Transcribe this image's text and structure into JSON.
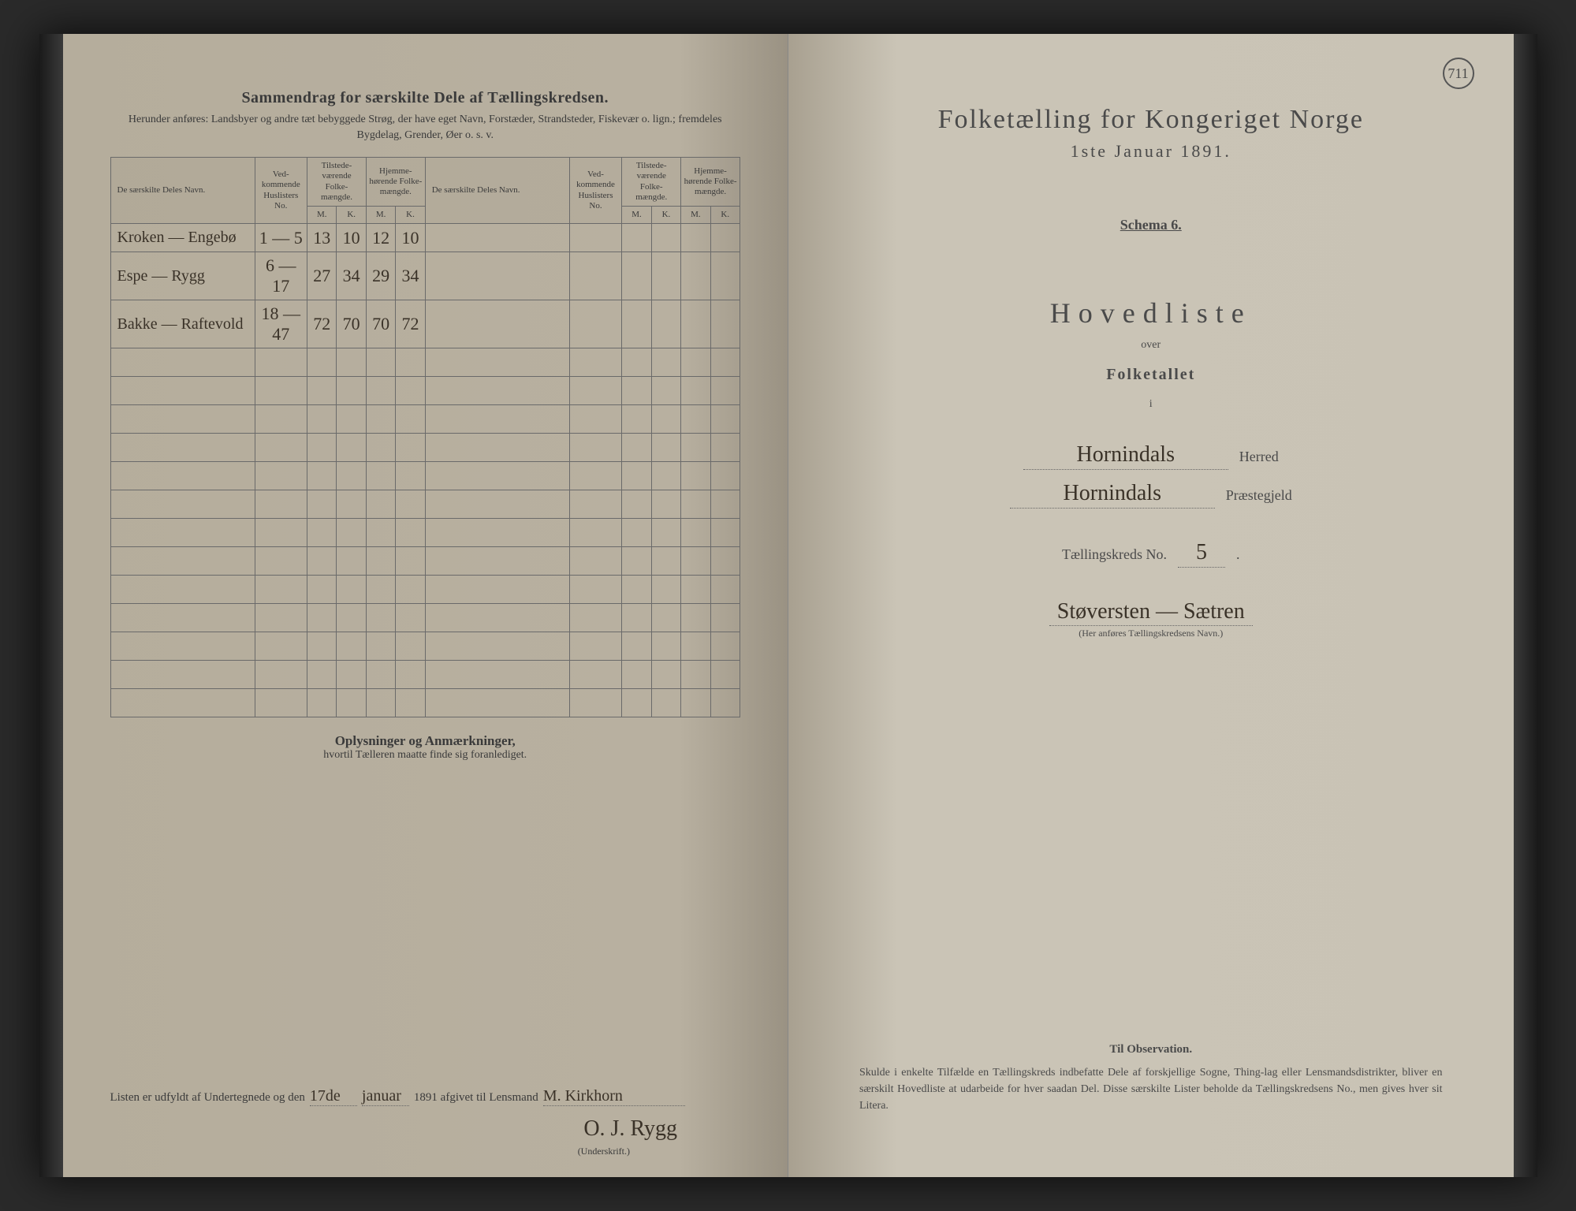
{
  "page_number": "711",
  "left": {
    "title": "Sammendrag for særskilte Dele af Tællingskredsen.",
    "subtitle": "Herunder anføres: Landsbyer og andre tæt bebyggede Strøg, der have eget Navn, Forstæder, Strandsteder, Fiskevær o. lign.; fremdeles Bygdelag, Grender, Øer o. s. v.",
    "headers": {
      "name": "De særskilte Deles Navn.",
      "huslister": "Ved-\nkommende\nHuslisters\nNo.",
      "tilstede": "Tilstede-\nværende\nFolke-\nmængde.",
      "hjemme": "Hjemme-\nhørende\nFolke-\nmængde.",
      "m": "M.",
      "k": "K."
    },
    "rows": [
      {
        "name": "Kroken — Engebø",
        "no": "1 — 5",
        "tm": "13",
        "tk": "10",
        "hm": "12",
        "hk": "10"
      },
      {
        "name": "Espe — Rygg",
        "no": "6 — 17",
        "tm": "27",
        "tk": "34",
        "hm": "29",
        "hk": "34"
      },
      {
        "name": "Bakke — Raftevold",
        "no": "18 — 47",
        "tm": "72",
        "tk": "70",
        "hm": "70",
        "hk": "72"
      }
    ],
    "notes_title": "Oplysninger og Anmærkninger,",
    "notes_sub": "hvortil Tælleren maatte finde sig foranlediget.",
    "sig_prefix": "Listen er udfyldt af Undertegnede og den",
    "sig_day": "17de",
    "sig_month": "januar",
    "sig_year": "1891 afgivet til Lensmand",
    "sig_lensmand": "M. Kirkhorn",
    "sig_name": "O. J. Rygg",
    "sig_caption": "(Underskrift.)"
  },
  "right": {
    "main_title": "Folketælling for Kongeriget Norge",
    "main_date": "1ste Januar 1891.",
    "schema": "Schema 6.",
    "hovedliste": "Hovedliste",
    "over": "over",
    "folketallet": "Folketallet",
    "i": "i",
    "herred_val": "Hornindals",
    "herred_lbl": "Herred",
    "praest_val": "Hornindals",
    "praest_lbl": "Præstegjeld",
    "kreds_lbl": "Tællingskreds No.",
    "kreds_no": "5",
    "kreds_name": "Støversten — Sætren",
    "kreds_caption": "(Her anføres Tællingskredsens Navn.)",
    "obs_title": "Til Observation.",
    "obs_text": "Skulde i enkelte Tilfælde en Tællingskreds indbefatte Dele af forskjellige Sogne, Thing-lag eller Lensmandsdistrikter, bliver en særskilt Hovedliste at udarbeide for hver saadan Del. Disse særskilte Lister beholde da Tællingskredsens No., men gives hver sit Litera."
  },
  "colors": {
    "paper_left": "#b8b0a0",
    "paper_right": "#cac4b6",
    "ink": "#3a3a3a",
    "handwriting": "#3a3228",
    "border": "#6a6a6a"
  }
}
